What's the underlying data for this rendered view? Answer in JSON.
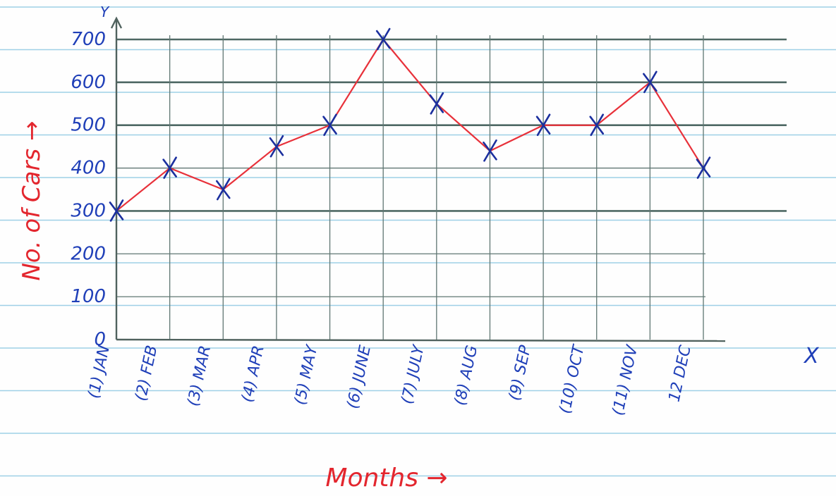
{
  "chart_data": {
    "type": "line",
    "xlabel": "Months →",
    "ylabel": "No. of Cars →",
    "x_axis_letter": "X",
    "y_axis_letter": "Y",
    "categories": [
      "(1) JAN",
      "(2) FEB",
      "(3) MAR",
      "(4) APR",
      "(5) MAY",
      "(6) JUNE",
      "(7) JULY",
      "(8) AUG",
      "(9) SEP",
      "(10) OCT",
      "(11) NOV",
      "12 DEC"
    ],
    "yticks": [
      "0",
      "100",
      "200",
      "300",
      "400",
      "500",
      "600",
      "700"
    ],
    "ylim": [
      0,
      700
    ],
    "grid": true,
    "series": [
      {
        "values": [
          300,
          400,
          350,
          450,
          500,
          700,
          550,
          440,
          500,
          500,
          600,
          400
        ]
      }
    ],
    "colors": {
      "series": "#e8313a",
      "markers": "#1b2f9e",
      "labels": "#1f3fb8",
      "axis_titles": "#e3262e",
      "grid": "#5f7672",
      "paper_lines": "#9ed0e6"
    }
  }
}
